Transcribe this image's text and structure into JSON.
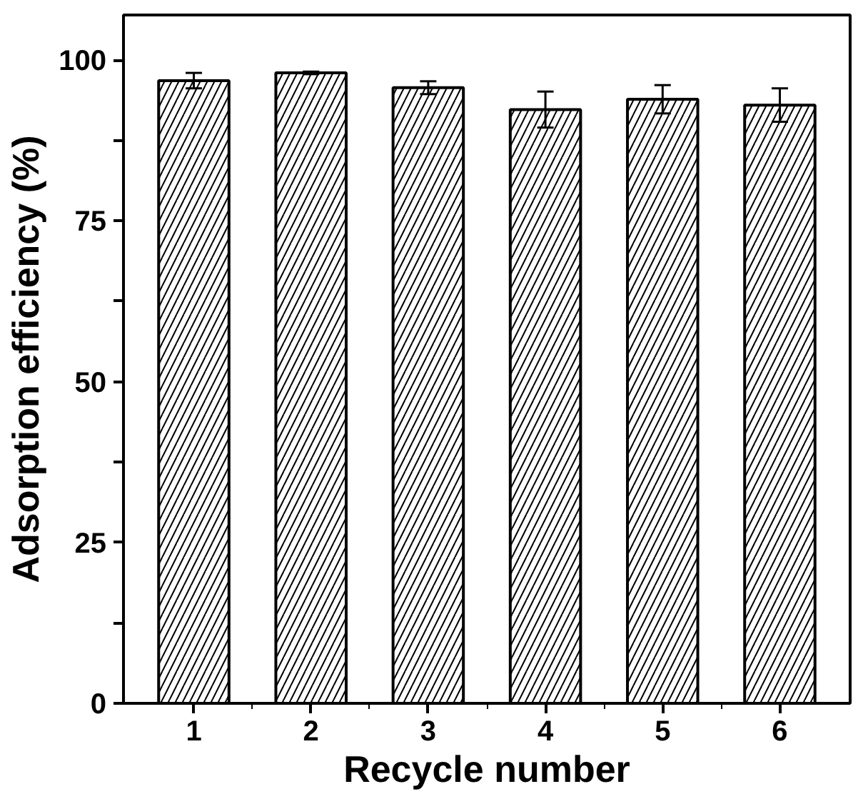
{
  "chart_data": {
    "type": "bar",
    "xlabel": "Recycle number",
    "ylabel": "Adsorption efficiency (%)",
    "categories": [
      "1",
      "2",
      "3",
      "4",
      "5",
      "6"
    ],
    "values": [
      96.8,
      98.0,
      95.7,
      92.3,
      93.9,
      93.0
    ],
    "errors": [
      1.2,
      0.2,
      1.0,
      2.8,
      2.2,
      2.6
    ],
    "color": "#ffffff",
    "ylim": [
      0,
      107
    ],
    "yticks": [
      0,
      {
        "value": 12.5,
        "label": null
      },
      25,
      {
        "value": 37.5,
        "label": null
      },
      50,
      {
        "value": 62.5,
        "label": null
      },
      75,
      {
        "value": 87.5,
        "label": null
      },
      100
    ],
    "grid": false
  }
}
